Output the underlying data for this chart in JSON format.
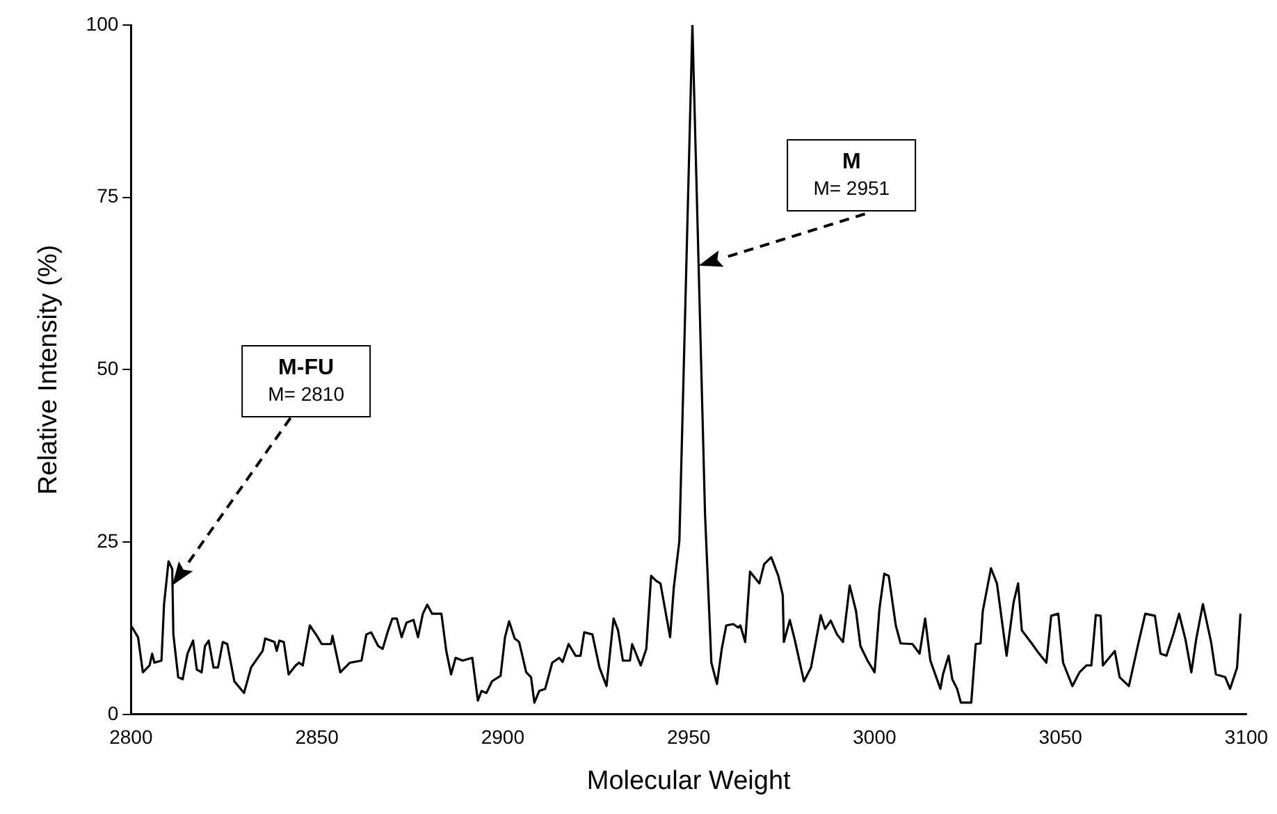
{
  "chart_data": {
    "type": "line",
    "xlabel": "Molecular Weight",
    "ylabel": "Relative Intensity (%)",
    "xlim": [
      2800,
      3100
    ],
    "xticks": [
      2800,
      2850,
      2900,
      2950,
      3000,
      3050,
      3100
    ],
    "ylim": [
      0,
      100
    ],
    "yticks": [
      0,
      25,
      50,
      75,
      100
    ],
    "grid": false,
    "marker": "none",
    "line_style": "solid",
    "annotations": [
      "M",
      "M= 2951",
      "M-FU",
      "M= 2810"
    ],
    "series": [
      {
        "color": "#000000",
        "x": [
          2800,
          2801.9,
          2803.2,
          2805,
          2805.7,
          2806.3,
          2808.2,
          2808.9,
          2810.1,
          2811.1,
          2811.4,
          2812.7,
          2813.9,
          2815.2,
          2816.7,
          2817.7,
          2819,
          2819.9,
          2820.9,
          2822.2,
          2823.4,
          2824.7,
          2825.9,
          2827.8,
          2830.4,
          2832.3,
          2835.4,
          2836.1,
          2838.6,
          2839.2,
          2839.9,
          2841.1,
          2842.4,
          2844.3,
          2845.2,
          2846.2,
          2848.1,
          2850,
          2851.3,
          2853.8,
          2854.2,
          2856.3,
          2858.9,
          2862,
          2863.3,
          2864.6,
          2866.5,
          2867.7,
          2869,
          2870.3,
          2871.5,
          2872.8,
          2874.1,
          2876,
          2877.2,
          2878.5,
          2879.7,
          2881,
          2883.5,
          2884.8,
          2886.1,
          2887.3,
          2889.2,
          2891.8,
          2893.3,
          2894.3,
          2895.6,
          2897.1,
          2899.4,
          2900.6,
          2901.7,
          2903.2,
          2904.4,
          2906.3,
          2907.6,
          2908.5,
          2909.8,
          2911.4,
          2913.3,
          2915.2,
          2916.1,
          2917.7,
          2919.6,
          2920.9,
          2921.9,
          2924.1,
          2926,
          2927.9,
          2929.8,
          2931,
          2932.3,
          2934.2,
          2934.8,
          2937.1,
          2938.6,
          2939.9,
          2941.2,
          2942.4,
          2945,
          2946,
          2947.5,
          2951,
          2954.4,
          2956.1,
          2957.6,
          2958.9,
          2960.1,
          2962,
          2963.3,
          2963.9,
          2965.2,
          2966.5,
          2969,
          2970.3,
          2972.2,
          2974.1,
          2975.3,
          2975.6,
          2977.2,
          2978.5,
          2981,
          2982.9,
          2985.5,
          2986.7,
          2988.2,
          2989.9,
          2991.5,
          2993.3,
          2995,
          2996.2,
          2998.1,
          3000,
          3001.3,
          3002.6,
          3003.8,
          3005.7,
          3007,
          3010.2,
          3012.1,
          3013.6,
          3015,
          3017.7,
          3018.4,
          3019.9,
          3020.9,
          3022.2,
          3023.2,
          3026,
          3027.2,
          3028.5,
          3029.1,
          3031.3,
          3032.9,
          3035.5,
          3037.4,
          3038.6,
          3039.6,
          3042.4,
          3043.7,
          3046.2,
          3047.5,
          3049.4,
          3050.7,
          3053.2,
          3055.1,
          3057,
          3058.3,
          3059.5,
          3060.8,
          3061.4,
          3064.6,
          3065.9,
          3068.4,
          3070.9,
          3072.8,
          3075.4,
          3076.9,
          3078.5,
          3080.4,
          3081.9,
          3083.6,
          3085.2,
          3086.5,
          3088.3,
          3090.5,
          3091.8,
          3094.3,
          3095.6,
          3097.5,
          3098.4
        ],
        "values": [
          12.9,
          11.2,
          6.1,
          7.1,
          8.8,
          7.5,
          7.8,
          16,
          22.2,
          21.1,
          11.6,
          5.4,
          5.1,
          8.8,
          10.7,
          6.5,
          6.1,
          9.9,
          10.7,
          6.8,
          6.8,
          10.5,
          10.2,
          4.8,
          3.1,
          6.8,
          9.2,
          11,
          10.5,
          9.2,
          10.7,
          10.5,
          5.8,
          7.1,
          7.5,
          7.1,
          12.9,
          11.4,
          10.2,
          10.2,
          11.4,
          6.1,
          7.5,
          7.8,
          11.6,
          11.9,
          9.9,
          9.5,
          11.9,
          13.9,
          13.9,
          11.2,
          13.3,
          13.7,
          11.2,
          14.6,
          15.9,
          14.6,
          14.6,
          9.2,
          5.8,
          8.2,
          7.8,
          8.2,
          2,
          3.4,
          3.1,
          4.8,
          5.6,
          11.2,
          13.5,
          11,
          10.5,
          6.1,
          5.4,
          1.7,
          3.4,
          3.7,
          7.5,
          8.2,
          7.6,
          10.2,
          8.5,
          8.5,
          11.9,
          11.6,
          6.8,
          4.1,
          13.9,
          12.2,
          7.8,
          7.8,
          10.2,
          7.1,
          9.5,
          20.1,
          19.4,
          19,
          11.2,
          18.4,
          25.2,
          100,
          29,
          7.5,
          4.4,
          9.5,
          12.9,
          13.1,
          12.6,
          12.9,
          10.5,
          20.7,
          19,
          21.8,
          22.8,
          20.1,
          17.3,
          10.5,
          13.7,
          10.9,
          4.8,
          6.8,
          14.4,
          12.4,
          13.6,
          11.6,
          10.5,
          18.7,
          15,
          9.9,
          7.8,
          6.1,
          15.3,
          20.4,
          20.1,
          12.9,
          10.3,
          10.2,
          8.8,
          13.9,
          7.8,
          3.7,
          5.8,
          8.5,
          5.1,
          3.7,
          1.7,
          1.7,
          10.2,
          10.3,
          15,
          21.2,
          19,
          8.5,
          16.3,
          19,
          12.2,
          10.2,
          9.2,
          7.5,
          14.3,
          14.6,
          7.5,
          4.1,
          6.1,
          7.1,
          7.1,
          14.4,
          14.3,
          7.1,
          9.2,
          5.4,
          4.1,
          10.2,
          14.6,
          14.3,
          8.8,
          8.5,
          11.7,
          14.6,
          10.9,
          6.1,
          10.9,
          16,
          10.5,
          5.8,
          5.4,
          3.7,
          6.8,
          14.6
        ]
      }
    ]
  }
}
